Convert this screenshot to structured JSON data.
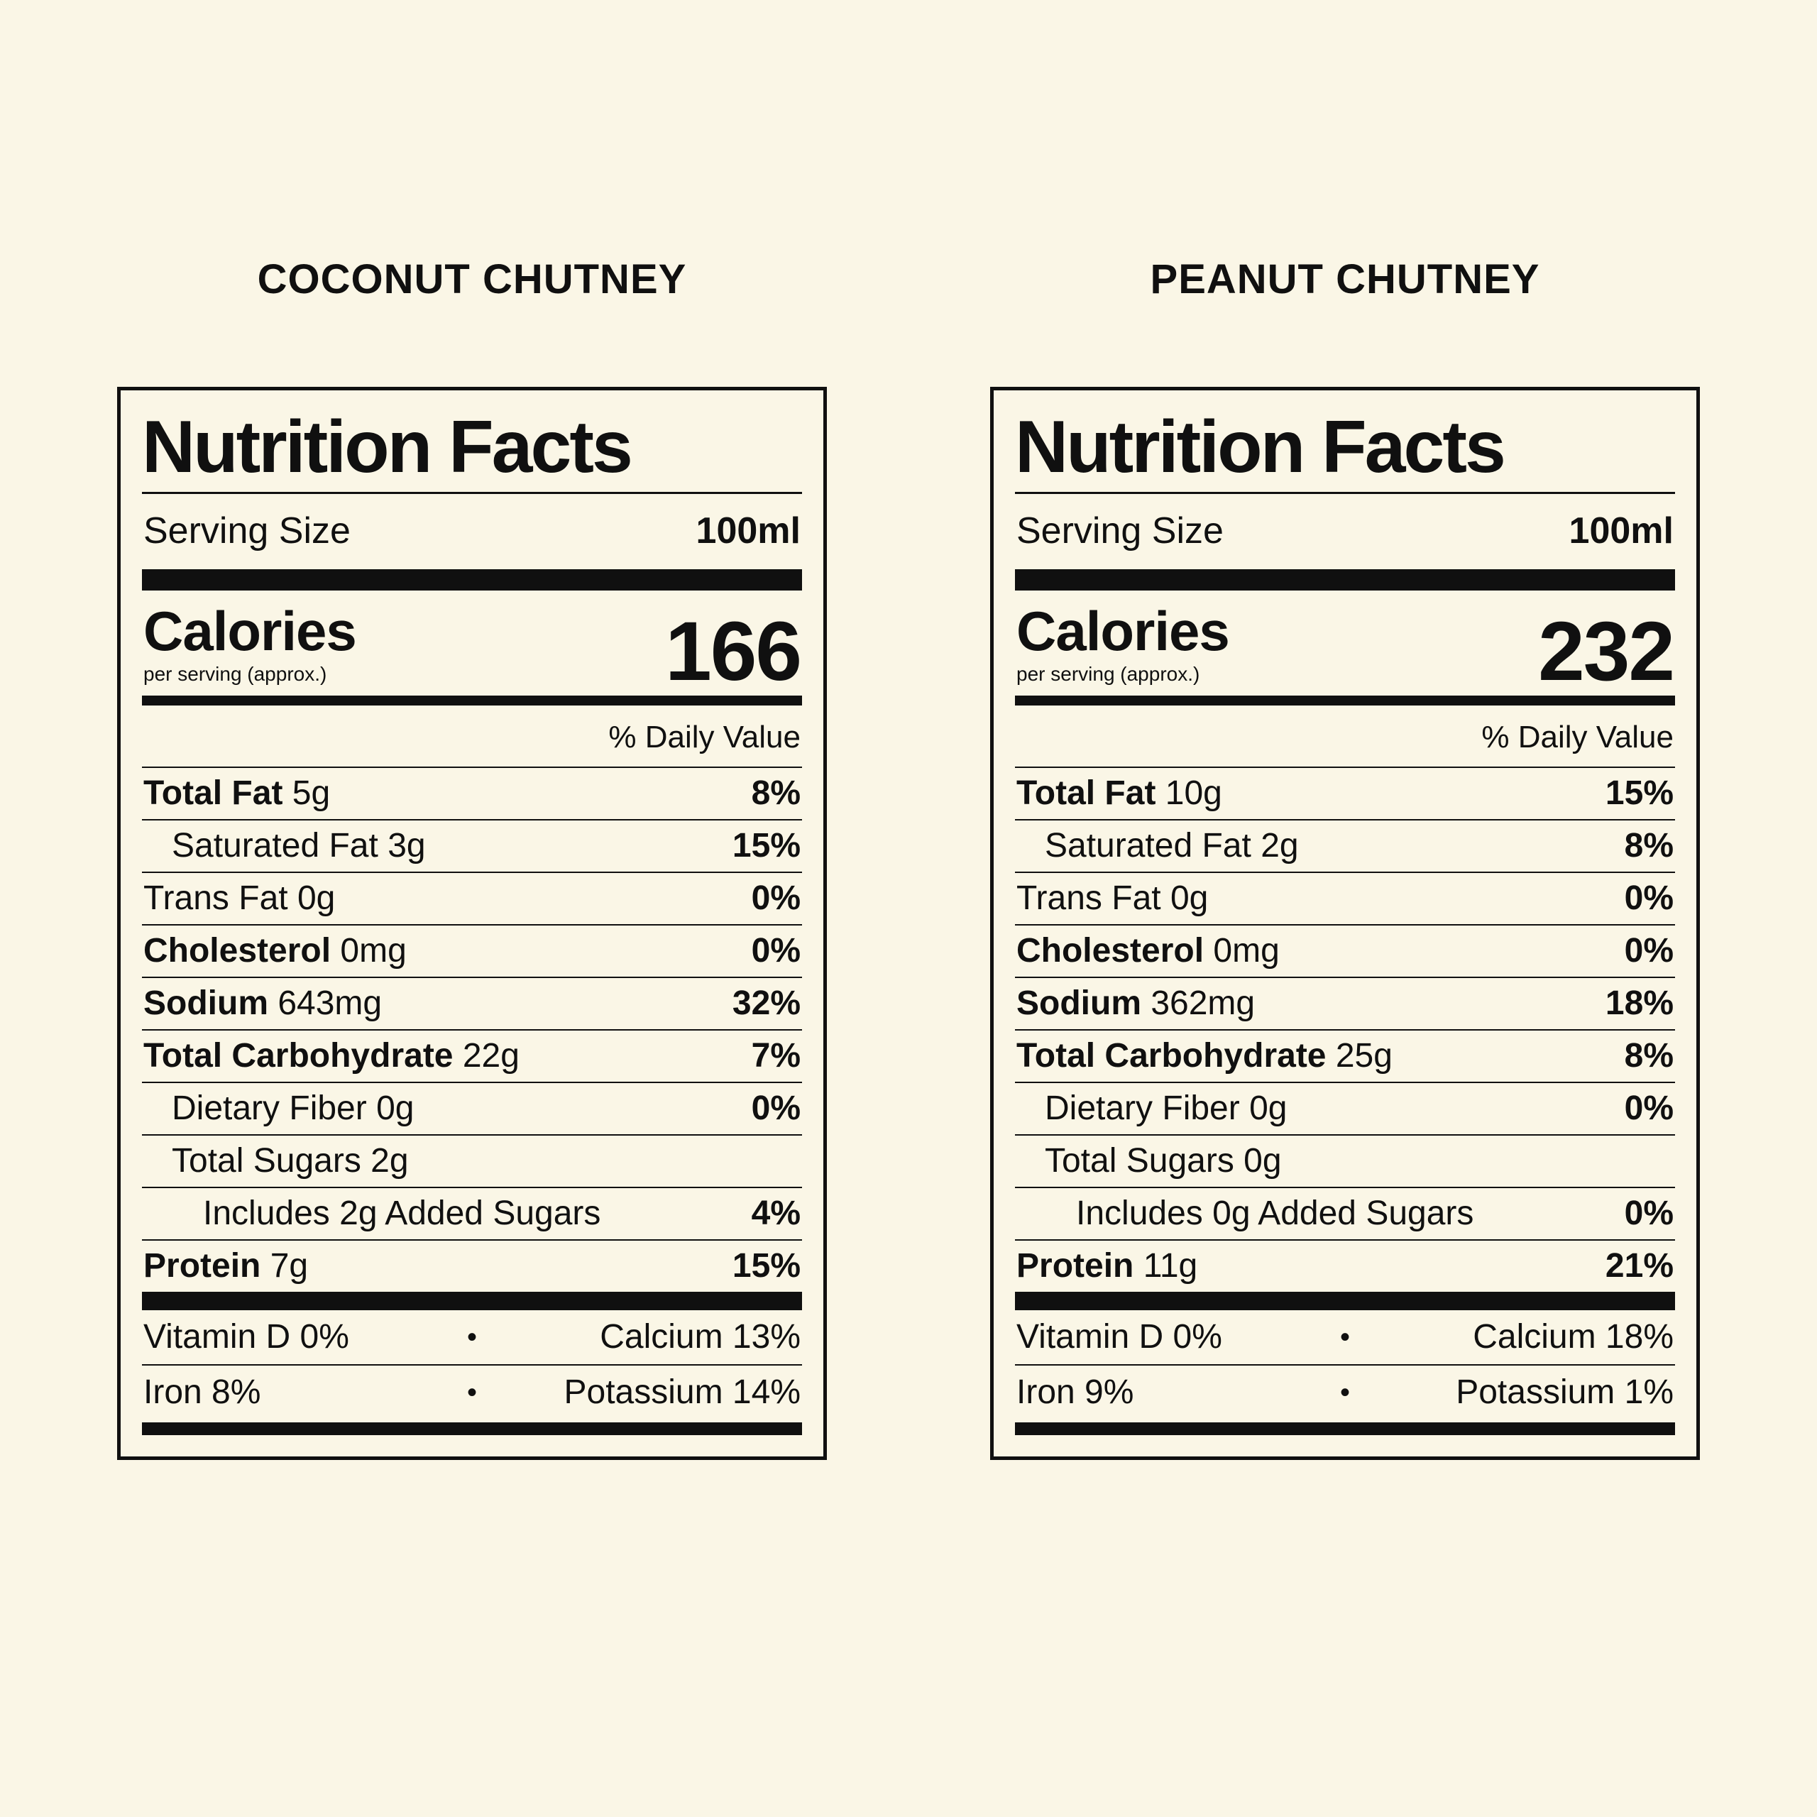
{
  "colors": {
    "background": "#FAF6E6",
    "ink": "#101010"
  },
  "glyphs": {
    "bullet": "•"
  },
  "labels": [
    {
      "title": "COCONUT CHUTNEY",
      "heading": "Nutrition Facts",
      "serving": {
        "label": "Serving Size",
        "value": "100ml"
      },
      "calories": {
        "label": "Calories",
        "note": "per serving (approx.)",
        "value": "166"
      },
      "daily_value_header": "% Daily Value",
      "rows": [
        {
          "name": "Total Fat",
          "amount": "5g",
          "dv": "8%"
        },
        {
          "name": "Saturated Fat",
          "amount": "3g",
          "dv": "15%"
        },
        {
          "name": "Trans Fat",
          "amount": "0g",
          "dv": "0%"
        },
        {
          "name": "Cholesterol",
          "amount": "0mg",
          "dv": "0%"
        },
        {
          "name": "Sodium",
          "amount": "643mg",
          "dv": "32%"
        },
        {
          "name": "Total Carbohydrate",
          "amount": "22g",
          "dv": "7%"
        },
        {
          "name": "Dietary Fiber",
          "amount": "0g",
          "dv": "0%"
        },
        {
          "name": "Total Sugars",
          "amount": "2g",
          "dv": ""
        },
        {
          "name": "Includes 2g Added Sugars",
          "amount": "",
          "dv": "4%"
        },
        {
          "name": "Protein",
          "amount": "7g",
          "dv": "15%"
        }
      ],
      "micros": [
        {
          "left": "Vitamin D 0%",
          "right": "Calcium 13%"
        },
        {
          "left": "Iron 8%",
          "right": "Potassium 14%"
        }
      ]
    },
    {
      "title": "PEANUT CHUTNEY",
      "heading": "Nutrition Facts",
      "serving": {
        "label": "Serving Size",
        "value": "100ml"
      },
      "calories": {
        "label": "Calories",
        "note": "per serving (approx.)",
        "value": "232"
      },
      "daily_value_header": "% Daily Value",
      "rows": [
        {
          "name": "Total Fat",
          "amount": "10g",
          "dv": "15%"
        },
        {
          "name": "Saturated Fat",
          "amount": "2g",
          "dv": "8%"
        },
        {
          "name": "Trans Fat",
          "amount": "0g",
          "dv": "0%"
        },
        {
          "name": "Cholesterol",
          "amount": "0mg",
          "dv": "0%"
        },
        {
          "name": "Sodium",
          "amount": "362mg",
          "dv": "18%"
        },
        {
          "name": "Total Carbohydrate",
          "amount": "25g",
          "dv": "8%"
        },
        {
          "name": "Dietary Fiber",
          "amount": "0g",
          "dv": "0%"
        },
        {
          "name": "Total Sugars",
          "amount": "0g",
          "dv": ""
        },
        {
          "name": "Includes 0g Added Sugars",
          "amount": "",
          "dv": "0%"
        },
        {
          "name": "Protein",
          "amount": "11g",
          "dv": "21%"
        }
      ],
      "micros": [
        {
          "left": "Vitamin D 0%",
          "right": "Calcium 18%"
        },
        {
          "left": "Iron 9%",
          "right": "Potassium 1%"
        }
      ]
    }
  ]
}
